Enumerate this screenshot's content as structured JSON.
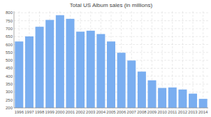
{
  "chart_data": {
    "type": "bar",
    "title": "Total US Album sales (in millions)",
    "categories": [
      "1996",
      "1997",
      "1998",
      "1999",
      "2000",
      "2001",
      "2002",
      "2003",
      "2004",
      "2005",
      "2006",
      "2007",
      "2008",
      "2009",
      "2010",
      "2011",
      "2012",
      "2013",
      "2014"
    ],
    "values": [
      619,
      651,
      712,
      755,
      785,
      762,
      681,
      687,
      666,
      619,
      548,
      499,
      429,
      374,
      326,
      329,
      316,
      290,
      257
    ],
    "color": "#7aaef0",
    "ylim": [
      200,
      810
    ],
    "yticks": [
      200,
      250,
      300,
      350,
      400,
      450,
      500,
      550,
      600,
      650,
      700,
      750,
      800
    ],
    "grid": true
  }
}
